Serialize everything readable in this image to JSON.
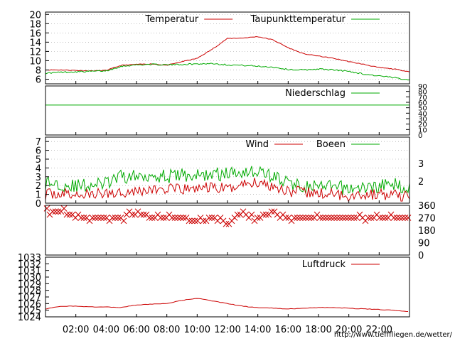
{
  "page": {
    "footer_url": "http://www.tiefffliegen.de/wetter/"
  },
  "colors": {
    "primary": "#cc0000",
    "secondary": "#00aa00",
    "grid": "#999999",
    "frame": "#000000"
  },
  "chart_data": [
    {
      "type": "line",
      "panel": "temperature",
      "x_ticks": [
        "02:00",
        "04:00",
        "06:00",
        "08:00",
        "10:00",
        "12:00",
        "14:00",
        "16:00",
        "18:00",
        "20:00",
        "22:00"
      ],
      "x_range_hours": [
        0,
        24
      ],
      "ylim": [
        5,
        20.5
      ],
      "y_ticks": [
        6,
        8,
        10,
        12,
        14,
        16,
        18,
        20
      ],
      "grid": true,
      "legend_position": "top-right",
      "series": [
        {
          "name": "Temperatur",
          "color": "#cc0000",
          "x": [
            0,
            1,
            2,
            3,
            4,
            5,
            6,
            7,
            8,
            9,
            10,
            11,
            12,
            13,
            14,
            15,
            16,
            17,
            18,
            19,
            20,
            21,
            22,
            23,
            24
          ],
          "values": [
            8.0,
            8.0,
            7.9,
            7.8,
            7.9,
            9.0,
            9.2,
            9.3,
            9.0,
            9.8,
            10.5,
            12.5,
            14.8,
            14.9,
            15.2,
            14.5,
            12.8,
            11.5,
            11.0,
            10.5,
            9.8,
            9.2,
            8.5,
            8.2,
            7.6
          ]
        },
        {
          "name": "Taupunkttemperatur",
          "color": "#00aa00",
          "x": [
            0,
            1,
            2,
            3,
            4,
            5,
            6,
            7,
            8,
            9,
            10,
            11,
            12,
            13,
            14,
            15,
            16,
            17,
            18,
            19,
            20,
            21,
            22,
            23,
            24
          ],
          "values": [
            7.3,
            7.5,
            7.6,
            7.7,
            7.8,
            8.8,
            9.1,
            9.2,
            9.1,
            9.2,
            9.3,
            9.4,
            9.1,
            9.0,
            8.8,
            8.6,
            8.1,
            8.0,
            8.2,
            8.0,
            7.7,
            7.1,
            6.7,
            6.3,
            5.9
          ]
        }
      ]
    },
    {
      "type": "line",
      "panel": "precipitation",
      "ylim": [
        0,
        90
      ],
      "y_ticks": [
        0,
        10,
        20,
        30,
        40,
        50,
        60,
        70,
        80,
        90
      ],
      "legend_position": "top-right",
      "series": [
        {
          "name": "Niederschlag",
          "color": "#00aa00",
          "x": [
            0,
            24
          ],
          "values": [
            55,
            55
          ]
        }
      ]
    },
    {
      "type": "line",
      "panel": "wind",
      "ylim": [
        0,
        7.5
      ],
      "y_ticks": [
        0,
        1,
        2,
        3,
        4,
        5,
        6,
        7
      ],
      "right_labels": [
        "3",
        "2"
      ],
      "grid": true,
      "legend_position": "top-right",
      "series": [
        {
          "name": "Wind",
          "color": "#cc0000",
          "x": [
            0,
            1,
            2,
            3,
            4,
            5,
            6,
            7,
            8,
            9,
            10,
            11,
            12,
            13,
            14,
            15,
            16,
            17,
            18,
            19,
            20,
            21,
            22,
            23,
            24
          ],
          "values": [
            1.0,
            1.1,
            0.9,
            1.0,
            1.1,
            1.3,
            1.4,
            1.5,
            1.6,
            1.5,
            1.7,
            1.8,
            1.6,
            2.2,
            2.4,
            2.0,
            1.4,
            1.2,
            1.1,
            1.0,
            0.9,
            1.0,
            1.0,
            0.9,
            0.8
          ]
        },
        {
          "name": "Boeen",
          "color": "#00aa00",
          "x": [
            0,
            1,
            2,
            3,
            4,
            5,
            6,
            7,
            8,
            9,
            10,
            11,
            12,
            13,
            14,
            15,
            16,
            17,
            18,
            19,
            20,
            21,
            22,
            23,
            24
          ],
          "values": [
            2.3,
            2.2,
            1.9,
            2.1,
            2.2,
            3.0,
            3.0,
            3.3,
            3.0,
            3.2,
            3.1,
            3.3,
            3.3,
            3.7,
            3.6,
            3.1,
            2.3,
            1.9,
            1.8,
            1.8,
            1.7,
            1.7,
            2.0,
            2.1,
            1.8
          ]
        }
      ]
    },
    {
      "type": "scatter",
      "panel": "wind_direction",
      "ylim": [
        0,
        360
      ],
      "y_ticks": [
        0,
        90,
        180,
        270,
        360
      ],
      "marker": "x",
      "color": "#cc0000",
      "x": [
        0,
        1,
        2,
        3,
        4,
        5,
        6,
        7,
        8,
        9,
        10,
        11,
        12,
        13,
        14,
        15,
        16,
        17,
        18,
        19,
        20,
        21,
        22,
        23,
        24
      ],
      "values": [
        315,
        315,
        270,
        270,
        270,
        270,
        315,
        270,
        270,
        270,
        240,
        270,
        225,
        315,
        270,
        315,
        270,
        270,
        270,
        270,
        270,
        270,
        270,
        270,
        270
      ]
    },
    {
      "type": "line",
      "panel": "pressure",
      "ylim": [
        1024,
        1033
      ],
      "y_ticks": [
        1024,
        1025,
        1026,
        1027,
        1028,
        1029,
        1030,
        1031,
        1032,
        1033
      ],
      "legend_position": "top-right",
      "series": [
        {
          "name": "Luftdruck",
          "color": "#cc0000",
          "x": [
            0,
            1,
            2,
            3,
            4,
            5,
            6,
            7,
            8,
            9,
            10,
            11,
            12,
            13,
            14,
            15,
            16,
            17,
            18,
            19,
            20,
            21,
            22,
            23,
            24
          ],
          "values": [
            1025.2,
            1025.6,
            1025.6,
            1025.5,
            1025.5,
            1025.4,
            1025.8,
            1025.9,
            1026.0,
            1026.5,
            1026.8,
            1026.4,
            1026.0,
            1025.6,
            1025.4,
            1025.3,
            1025.2,
            1025.3,
            1025.4,
            1025.4,
            1025.3,
            1025.2,
            1025.1,
            1025.0,
            1024.8
          ]
        }
      ]
    }
  ]
}
